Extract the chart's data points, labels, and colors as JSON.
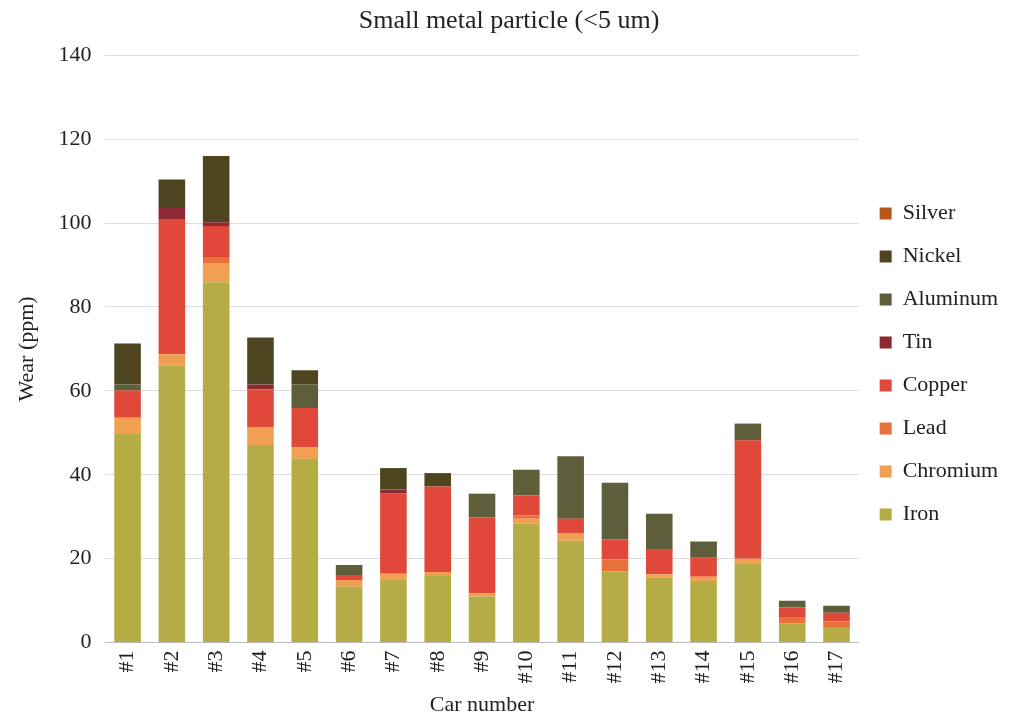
{
  "chart_data": {
    "type": "bar",
    "title": "Small metal particle (<5 um)",
    "xlabel": "Car number",
    "ylabel": "Wear (ppm)",
    "categories": [
      "#1",
      "#2",
      "#3",
      "#4",
      "#5",
      "#6",
      "#7",
      "#8",
      "#9",
      "#10",
      "#11",
      "#12",
      "#13",
      "#14",
      "#15",
      "#16",
      "#17"
    ],
    "stacked": true,
    "ylim": [
      0,
      140
    ],
    "yticks": [
      0,
      20,
      40,
      60,
      80,
      100,
      120,
      140
    ],
    "grid": "y",
    "legend": "right",
    "series": [
      {
        "name": "Iron",
        "color": "#b5ac45",
        "values": [
          49.7,
          66.0,
          85.9,
          47.1,
          43.8,
          13.3,
          15.1,
          15.9,
          11.0,
          28.4,
          24.3,
          17.0,
          15.5,
          14.7,
          18.9,
          4.6,
          3.7
        ]
      },
      {
        "name": "Chromium",
        "color": "#f0a050",
        "values": [
          3.9,
          2.7,
          4.6,
          4.3,
          2.7,
          1.6,
          1.3,
          0.9,
          0.7,
          1.1,
          1.7,
          0,
          0.8,
          1.0,
          1.1,
          0,
          0
        ]
      },
      {
        "name": "Lead",
        "color": "#e8703a",
        "values": [
          0,
          0,
          1.4,
          0,
          0,
          0,
          0,
          0,
          0,
          0.8,
          0,
          2.8,
          0,
          0,
          0,
          1.5,
          1.3
        ]
      },
      {
        "name": "Copper",
        "color": "#e0483a",
        "values": [
          6.5,
          32.1,
          7.4,
          9.0,
          9.4,
          1.2,
          19.1,
          20.4,
          18.2,
          4.8,
          3.5,
          4.8,
          6.0,
          4.5,
          28.2,
          2.3,
          2.1
        ]
      },
      {
        "name": "Tin",
        "color": "#8b2a34",
        "values": [
          0,
          2.8,
          0.9,
          1.1,
          0,
          0,
          1.0,
          0,
          0,
          0,
          0,
          0,
          0,
          0,
          0,
          0,
          0
        ]
      },
      {
        "name": "Aluminum",
        "color": "#5e5e3a",
        "values": [
          1.4,
          0,
          0,
          0,
          5.6,
          2.4,
          0,
          0,
          5.6,
          6.1,
          14.9,
          13.5,
          8.4,
          3.9,
          4.0,
          1.6,
          1.7
        ]
      },
      {
        "name": "Nickel",
        "color": "#4e4520",
        "values": [
          9.8,
          6.8,
          15.8,
          11.2,
          3.4,
          0,
          5.1,
          3.2,
          0,
          0,
          0,
          0,
          0,
          0,
          0,
          0,
          0
        ]
      },
      {
        "name": "Silver",
        "color": "#b8561c",
        "values": [
          0,
          0,
          0,
          0,
          0,
          0,
          0,
          0,
          0,
          0,
          0,
          0,
          0,
          0,
          0,
          0,
          0
        ]
      }
    ]
  }
}
